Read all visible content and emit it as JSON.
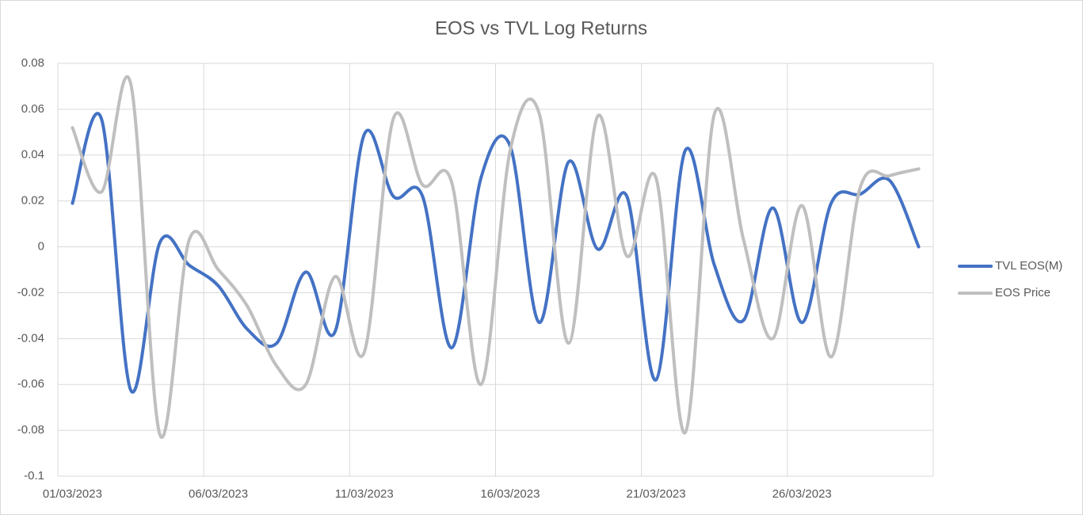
{
  "chart_data": {
    "type": "line",
    "title": "EOS vs TVL Log Returns",
    "categories": [
      "01/03/2023",
      null,
      null,
      null,
      null,
      "06/03/2023",
      null,
      null,
      null,
      null,
      "11/03/2023",
      null,
      null,
      null,
      null,
      "16/03/2023",
      null,
      null,
      null,
      null,
      "21/03/2023",
      null,
      null,
      null,
      null,
      "26/03/2023",
      null,
      null,
      null,
      null
    ],
    "series": [
      {
        "name": "TVL EOS(M)",
        "color": "#4472c4",
        "values": [
          0.019,
          0.0556,
          -0.0625,
          0.002,
          -0.008,
          -0.017,
          -0.036,
          -0.042,
          -0.011,
          -0.037,
          0.049,
          0.022,
          0.022,
          -0.044,
          0.03,
          0.044,
          -0.033,
          0.037,
          -0.001,
          0.022,
          -0.058,
          0.042,
          -0.008,
          -0.032,
          0.017,
          -0.033,
          0.019,
          0.023,
          0.029,
          0.0
        ]
      },
      {
        "name": "EOS Price",
        "color": "#bfbfbf",
        "values": [
          0.052,
          0.024,
          0.071,
          -0.082,
          0.003,
          -0.01,
          -0.026,
          -0.052,
          -0.06,
          -0.013,
          -0.046,
          0.056,
          0.027,
          0.028,
          -0.06,
          0.042,
          0.058,
          -0.042,
          0.057,
          -0.004,
          0.03,
          -0.081,
          0.058,
          0.003,
          -0.04,
          0.018,
          -0.048,
          0.026,
          0.031,
          0.034
        ]
      }
    ],
    "ylim": [
      -0.1,
      0.08
    ],
    "yticks": [
      -0.1,
      -0.08,
      -0.06,
      -0.04,
      -0.02,
      0,
      0.02,
      0.04,
      0.06,
      0.08
    ],
    "grid": true,
    "legend": "right"
  }
}
